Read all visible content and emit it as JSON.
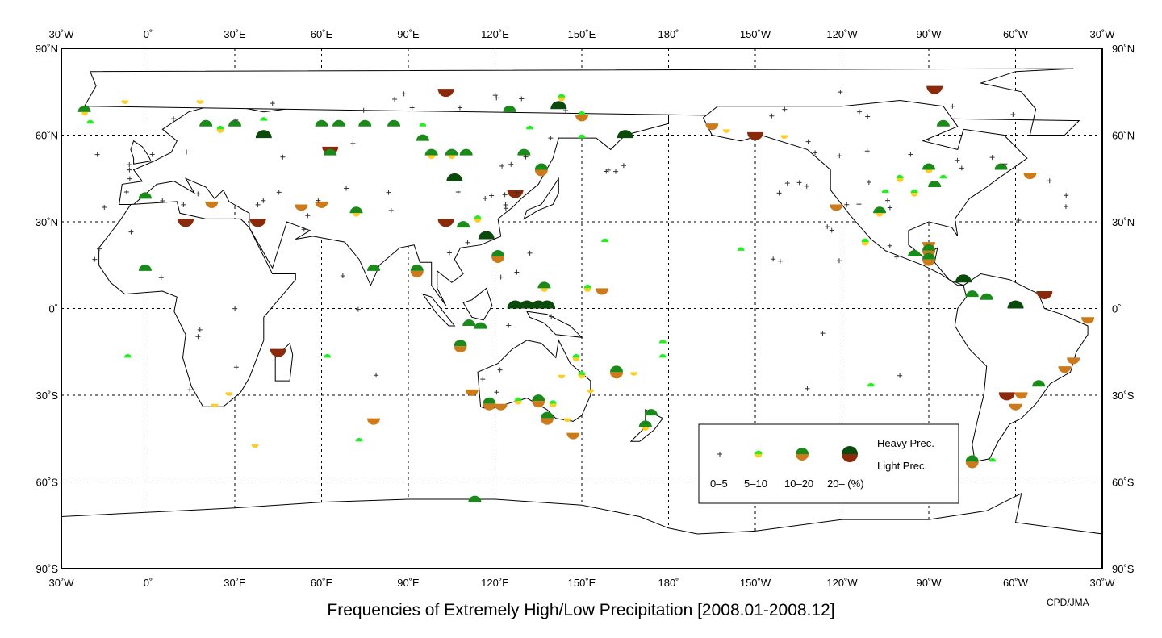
{
  "title": "Frequencies of Extremely High/Low Precipitation [2008.01-2008.12]",
  "credit": "CPD/JMA",
  "axes": {
    "x_ticks": [
      "30˚W",
      "0˚",
      "30˚E",
      "60˚E",
      "90˚E",
      "120˚E",
      "150˚E",
      "180˚",
      "150˚W",
      "120˚W",
      "90˚W",
      "60˚W",
      "30˚W"
    ],
    "y_ticks": [
      "90˚N",
      "60˚N",
      "30˚N",
      "0˚",
      "30˚S",
      "60˚S",
      "90˚S"
    ]
  },
  "legend": {
    "classes": [
      "0–5",
      "5–10",
      "10–20",
      "20– (%)"
    ],
    "heavy_label": "Heavy Prec.",
    "light_label": "Light Prec."
  },
  "colors": {
    "heavy": [
      "#ffffff",
      "#22ee22",
      "#1a8a1a",
      "#0a4a0a"
    ],
    "light": [
      "#ffffff",
      "#ffcc22",
      "#cc7a1a",
      "#8a2a0a"
    ],
    "land": "#ffffff",
    "coast": "#000000"
  },
  "stations": [
    {
      "lon": -22,
      "lat": 68,
      "h": 2,
      "l": 1
    },
    {
      "lon": -20,
      "lat": 64,
      "h": 1,
      "l": 0
    },
    {
      "lon": -8,
      "lat": 72,
      "h": 0,
      "l": 1
    },
    {
      "lon": 18,
      "lat": 72,
      "h": 0,
      "l": 1
    },
    {
      "lon": 20,
      "lat": 63,
      "h": 2,
      "l": 0
    },
    {
      "lon": 25,
      "lat": 62,
      "h": 1,
      "l": 1
    },
    {
      "lon": 30,
      "lat": 63,
      "h": 2,
      "l": 0
    },
    {
      "lon": 40,
      "lat": 65,
      "h": 1,
      "l": 0
    },
    {
      "lon": 60,
      "lat": 63,
      "h": 2,
      "l": 0
    },
    {
      "lon": 66,
      "lat": 63,
      "h": 2,
      "l": 0
    },
    {
      "lon": 75,
      "lat": 63,
      "h": 2,
      "l": 0
    },
    {
      "lon": 85,
      "lat": 63,
      "h": 2,
      "l": 0
    },
    {
      "lon": 95,
      "lat": 63,
      "h": 1,
      "l": 0
    },
    {
      "lon": 40,
      "lat": 59,
      "h": 3,
      "l": 0
    },
    {
      "lon": 63,
      "lat": 56,
      "h": 0,
      "l": 3
    },
    {
      "lon": 63,
      "lat": 53,
      "h": 2,
      "l": 0
    },
    {
      "lon": 95,
      "lat": 58,
      "h": 2,
      "l": 0
    },
    {
      "lon": 98,
      "lat": 53,
      "h": 2,
      "l": 1
    },
    {
      "lon": 105,
      "lat": 53,
      "h": 2,
      "l": 1
    },
    {
      "lon": 110,
      "lat": 53,
      "h": 2,
      "l": 0
    },
    {
      "lon": 103,
      "lat": 76,
      "h": 0,
      "l": 3
    },
    {
      "lon": 143,
      "lat": 73,
      "h": 1,
      "l": 1
    },
    {
      "lon": 142,
      "lat": 69,
      "h": 3,
      "l": 0
    },
    {
      "lon": 125,
      "lat": 68,
      "h": 2,
      "l": 0
    },
    {
      "lon": 132,
      "lat": 62,
      "h": 1,
      "l": 0
    },
    {
      "lon": 150,
      "lat": 67,
      "h": 1,
      "l": 2
    },
    {
      "lon": 165,
      "lat": 59,
      "h": 3,
      "l": 0
    },
    {
      "lon": 150,
      "lat": 59,
      "h": 1,
      "l": 0
    },
    {
      "lon": 130,
      "lat": 53,
      "h": 2,
      "l": 0
    },
    {
      "lon": 136,
      "lat": 48,
      "h": 2,
      "l": 2
    },
    {
      "lon": 127,
      "lat": 41,
      "h": 0,
      "l": 3
    },
    {
      "lon": 106,
      "lat": 44,
      "h": 3,
      "l": 0
    },
    {
      "lon": 103,
      "lat": 31,
      "h": 0,
      "l": 3
    },
    {
      "lon": 114,
      "lat": 31,
      "h": 1,
      "l": 1
    },
    {
      "lon": 117,
      "lat": 24,
      "h": 3,
      "l": 0
    },
    {
      "lon": 121,
      "lat": 18,
      "h": 2,
      "l": 2
    },
    {
      "lon": 109,
      "lat": 28,
      "h": 2,
      "l": 0
    },
    {
      "lon": 93,
      "lat": 13,
      "h": 2,
      "l": 2
    },
    {
      "lon": 78,
      "lat": 13,
      "h": 2,
      "l": 0
    },
    {
      "lon": 72,
      "lat": 33,
      "h": 2,
      "l": 1
    },
    {
      "lon": 60,
      "lat": 37,
      "h": 0,
      "l": 2
    },
    {
      "lon": 53,
      "lat": 36,
      "h": 0,
      "l": 2
    },
    {
      "lon": 38,
      "lat": 31,
      "h": 0,
      "l": 3
    },
    {
      "lon": 13,
      "lat": 31,
      "h": 0,
      "l": 3
    },
    {
      "lon": 22,
      "lat": 37,
      "h": 0,
      "l": 2
    },
    {
      "lon": -1,
      "lat": 38,
      "h": 2,
      "l": 0
    },
    {
      "lon": -1,
      "lat": 13,
      "h": 2,
      "l": 0
    },
    {
      "lon": -7,
      "lat": -17,
      "h": 1,
      "l": 0
    },
    {
      "lon": 45,
      "lat": -14,
      "h": 0,
      "l": 3
    },
    {
      "lon": 62,
      "lat": -17,
      "h": 1,
      "l": 0
    },
    {
      "lon": 37,
      "lat": -47,
      "h": 0,
      "l": 1
    },
    {
      "lon": 73,
      "lat": -46,
      "h": 1,
      "l": 0
    },
    {
      "lon": 78,
      "lat": -38,
      "h": 0,
      "l": 2
    },
    {
      "lon": 23,
      "lat": -33,
      "h": 0,
      "l": 1
    },
    {
      "lon": 28,
      "lat": -29,
      "h": 0,
      "l": 1
    },
    {
      "lon": 127,
      "lat": 0,
      "h": 3,
      "l": 0
    },
    {
      "lon": 131,
      "lat": 0,
      "h": 3,
      "l": 0
    },
    {
      "lon": 135,
      "lat": 0,
      "h": 3,
      "l": 0
    },
    {
      "lon": 138,
      "lat": 0,
      "h": 3,
      "l": 0
    },
    {
      "lon": 137,
      "lat": 7,
      "h": 2,
      "l": 1
    },
    {
      "lon": 157,
      "lat": 7,
      "h": 0,
      "l": 2
    },
    {
      "lon": 152,
      "lat": 7,
      "h": 1,
      "l": 1
    },
    {
      "lon": 108,
      "lat": -13,
      "h": 2,
      "l": 2
    },
    {
      "lon": 111,
      "lat": -6,
      "h": 2,
      "l": 0
    },
    {
      "lon": 115,
      "lat": -7,
      "h": 2,
      "l": 0
    },
    {
      "lon": 113,
      "lat": -67,
      "h": 2,
      "l": 0
    },
    {
      "lon": 112,
      "lat": -28,
      "h": 0,
      "l": 2
    },
    {
      "lon": 118,
      "lat": -33,
      "h": 2,
      "l": 2
    },
    {
      "lon": 122,
      "lat": -33,
      "h": 0,
      "l": 2
    },
    {
      "lon": 128,
      "lat": -32,
      "h": 1,
      "l": 1
    },
    {
      "lon": 135,
      "lat": -32,
      "h": 2,
      "l": 2
    },
    {
      "lon": 140,
      "lat": -33,
      "h": 1,
      "l": 1
    },
    {
      "lon": 138,
      "lat": -38,
      "h": 2,
      "l": 2
    },
    {
      "lon": 145,
      "lat": -38,
      "h": 0,
      "l": 1
    },
    {
      "lon": 147,
      "lat": -43,
      "h": 0,
      "l": 2
    },
    {
      "lon": 153,
      "lat": -28,
      "h": 0,
      "l": 1
    },
    {
      "lon": 150,
      "lat": -23,
      "h": 1,
      "l": 1
    },
    {
      "lon": 143,
      "lat": -23,
      "h": 0,
      "l": 1
    },
    {
      "lon": 148,
      "lat": -17,
      "h": 1,
      "l": 1
    },
    {
      "lon": 162,
      "lat": -22,
      "h": 2,
      "l": 2
    },
    {
      "lon": 168,
      "lat": -22,
      "h": 0,
      "l": 1
    },
    {
      "lon": 174,
      "lat": -37,
      "h": 2,
      "l": 0
    },
    {
      "lon": 172,
      "lat": -41,
      "h": 2,
      "l": 1
    },
    {
      "lon": 178,
      "lat": -17,
      "h": 1,
      "l": 0
    },
    {
      "lon": 178,
      "lat": -12,
      "h": 1,
      "l": 0
    },
    {
      "lon": 158,
      "lat": 23,
      "h": 1,
      "l": 0
    },
    {
      "lon": -155,
      "lat": 20,
      "h": 1,
      "l": 0
    },
    {
      "lon": -150,
      "lat": 61,
      "h": 0,
      "l": 3
    },
    {
      "lon": -165,
      "lat": 64,
      "h": 0,
      "l": 2
    },
    {
      "lon": -160,
      "lat": 62,
      "h": 0,
      "l": 1
    },
    {
      "lon": -140,
      "lat": 60,
      "h": 0,
      "l": 1
    },
    {
      "lon": -122,
      "lat": 36,
      "h": 0,
      "l": 2
    },
    {
      "lon": -112,
      "lat": 23,
      "h": 1,
      "l": 1
    },
    {
      "lon": -107,
      "lat": 33,
      "h": 2,
      "l": 1
    },
    {
      "lon": -95,
      "lat": 40,
      "h": 1,
      "l": 1
    },
    {
      "lon": -90,
      "lat": 48,
      "h": 2,
      "l": 1
    },
    {
      "lon": -88,
      "lat": 42,
      "h": 2,
      "l": 0
    },
    {
      "lon": -85,
      "lat": 45,
      "h": 1,
      "l": 0
    },
    {
      "lon": -100,
      "lat": 45,
      "h": 1,
      "l": 1
    },
    {
      "lon": -105,
      "lat": 40,
      "h": 1,
      "l": 0
    },
    {
      "lon": -90,
      "lat": 23,
      "h": 0,
      "l": 2
    },
    {
      "lon": -90,
      "lat": 20,
      "h": 2,
      "l": 2
    },
    {
      "lon": -90,
      "lat": 17,
      "h": 2,
      "l": 2
    },
    {
      "lon": -95,
      "lat": 18,
      "h": 2,
      "l": 0
    },
    {
      "lon": -78,
      "lat": 9,
      "h": 3,
      "l": 0
    },
    {
      "lon": -75,
      "lat": 4,
      "h": 2,
      "l": 0
    },
    {
      "lon": -70,
      "lat": 3,
      "h": 2,
      "l": 0
    },
    {
      "lon": -60,
      "lat": 0,
      "h": 3,
      "l": 0
    },
    {
      "lon": -50,
      "lat": 6,
      "h": 0,
      "l": 3
    },
    {
      "lon": -35,
      "lat": -3,
      "h": 0,
      "l": 2
    },
    {
      "lon": -40,
      "lat": -17,
      "h": 0,
      "l": 2
    },
    {
      "lon": -43,
      "lat": -20,
      "h": 0,
      "l": 2
    },
    {
      "lon": -63,
      "lat": -29,
      "h": 0,
      "l": 3
    },
    {
      "lon": -58,
      "lat": -29,
      "h": 0,
      "l": 2
    },
    {
      "lon": -60,
      "lat": -33,
      "h": 0,
      "l": 2
    },
    {
      "lon": -52,
      "lat": -27,
      "h": 2,
      "l": 0
    },
    {
      "lon": -75,
      "lat": -53,
      "h": 2,
      "l": 2
    },
    {
      "lon": -68,
      "lat": -53,
      "h": 1,
      "l": 0
    },
    {
      "lon": -88,
      "lat": 77,
      "h": 0,
      "l": 3
    },
    {
      "lon": -85,
      "lat": 63,
      "h": 2,
      "l": 0
    },
    {
      "lon": -55,
      "lat": 47,
      "h": 0,
      "l": 2
    },
    {
      "lon": -65,
      "lat": 48,
      "h": 2,
      "l": 0
    },
    {
      "lon": -110,
      "lat": -27,
      "h": 1,
      "l": 0
    }
  ]
}
